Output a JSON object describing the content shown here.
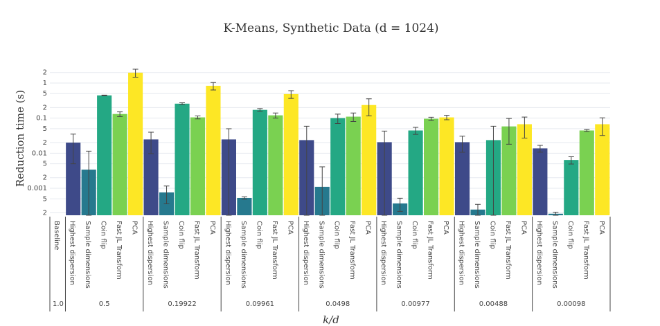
{
  "chart_data": {
    "type": "bar",
    "title": "K-Means, Synthetic Data (d = 1024)",
    "x_label": "k/d",
    "y_label": "Reduction time (s)",
    "log_y": true,
    "grid": true,
    "ylim": [
      0.00017,
      3.9
    ],
    "yticks": [
      {
        "value": 0.0002,
        "label": "2"
      },
      {
        "value": 0.0005,
        "label": "5"
      },
      0.001,
      {
        "value": 0.002,
        "label": "2"
      },
      {
        "value": 0.005,
        "label": "5"
      },
      0.01,
      {
        "value": 0.02,
        "label": "2"
      },
      {
        "value": 0.05,
        "label": "5"
      },
      0.1,
      {
        "value": 0.2,
        "label": "2"
      },
      {
        "value": 0.5,
        "label": "5"
      },
      1,
      {
        "value": 2,
        "label": "2"
      }
    ],
    "groups": [
      {
        "label": "1.0",
        "categories": [
          "Baseline"
        ],
        "values": [
          null
        ],
        "errors": [
          null
        ],
        "colors": [
          "#440154"
        ]
      },
      {
        "label": "0.5",
        "categories": [
          "Highest dispersion",
          "Sample dimensions",
          "Coin flip",
          "Fast JL Transform",
          "PCA"
        ],
        "values": [
          0.02,
          0.0034,
          0.444,
          0.131,
          1.97
        ],
        "errors": [
          0.015,
          0.008,
          0.01,
          0.02,
          0.5
        ],
        "colors": [
          "#3e4a89",
          "#26798e",
          "#24a884",
          "#7ad151",
          "#fde725"
        ]
      },
      {
        "label": "0.19922",
        "categories": [
          "Highest dispersion",
          "Sample dimensions",
          "Coin flip",
          "Fast JL Transform",
          "PCA"
        ],
        "values": [
          0.0247,
          0.00076,
          0.258,
          0.105,
          0.835
        ],
        "errors": [
          0.015,
          0.0004,
          0.015,
          0.01,
          0.2
        ],
        "colors": [
          "#3e4a89",
          "#26798e",
          "#24a884",
          "#7ad151",
          "#fde725"
        ]
      },
      {
        "label": "0.09961",
        "categories": [
          "Highest dispersion",
          "Sample dimensions",
          "Coin flip",
          "Fast JL Transform",
          "PCA"
        ],
        "values": [
          0.0247,
          0.00053,
          0.172,
          0.12,
          0.485
        ],
        "errors": [
          0.025,
          4e-05,
          0.015,
          0.02,
          0.12
        ],
        "colors": [
          "#3e4a89",
          "#26798e",
          "#24a884",
          "#7ad151",
          "#fde725"
        ]
      },
      {
        "label": "0.0498",
        "categories": [
          "Highest dispersion",
          "Sample dimensions",
          "Coin flip",
          "Fast JL Transform",
          "PCA"
        ],
        "values": [
          0.0236,
          0.0011,
          0.1,
          0.11,
          0.236
        ],
        "errors": [
          0.035,
          0.003,
          0.03,
          0.03,
          0.12
        ],
        "colors": [
          "#3e4a89",
          "#26798e",
          "#24a884",
          "#7ad151",
          "#fde725"
        ]
      },
      {
        "label": "0.00977",
        "categories": [
          "Highest dispersion",
          "Sample dimensions",
          "Coin flip",
          "Fast JL Transform",
          "PCA"
        ],
        "values": [
          0.0206,
          0.00037,
          0.0444,
          0.096,
          0.105
        ],
        "errors": [
          0.022,
          0.00015,
          0.01,
          0.01,
          0.015
        ],
        "colors": [
          "#3e4a89",
          "#26798e",
          "#24a884",
          "#7ad151",
          "#fde725"
        ]
      },
      {
        "label": "0.00488",
        "categories": [
          "Highest dispersion",
          "Sample dimensions",
          "Coin flip",
          "Fast JL Transform",
          "PCA"
        ],
        "values": [
          0.0206,
          0.000247,
          0.0236,
          0.058,
          0.067
        ],
        "errors": [
          0.01,
          0.0001,
          0.035,
          0.04,
          0.04
        ],
        "colors": [
          "#3e4a89",
          "#26798e",
          "#24a884",
          "#7ad151",
          "#fde725"
        ]
      },
      {
        "label": "0.00098",
        "categories": [
          "Highest dispersion",
          "Sample dimensions",
          "Coin flip",
          "Fast JL Transform",
          "PCA"
        ],
        "values": [
          0.0137,
          0.000188,
          0.0064,
          0.0444,
          0.067
        ],
        "errors": [
          0.003,
          2e-05,
          0.0015,
          0.003,
          0.035
        ],
        "colors": [
          "#3e4a89",
          "#26798e",
          "#24a884",
          "#7ad151",
          "#fde725"
        ]
      }
    ]
  }
}
